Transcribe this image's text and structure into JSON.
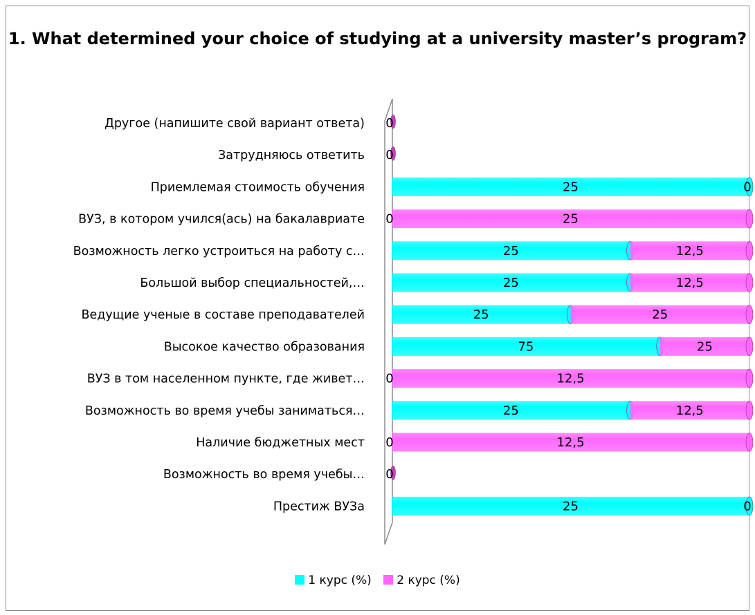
{
  "chart_data": {
    "type": "bar",
    "orientation": "horizontal",
    "stacked": true,
    "title": "1. What determined your choice of studying at a university master’s program?",
    "categories": [
      "Другое (напишите свой вариант ответа)",
      "Затрудняюсь ответить",
      "Приемлемая стоимость обучения",
      "ВУЗ, в котором учился(ась) на бакалавриате",
      "Возможность легко устроиться на работу с…",
      "Большой выбор специальностей,…",
      "Ведущие ученые в составе преподавателей",
      "Высокое качество образования",
      "ВУЗ в том населенном пункте, где живет…",
      "Возможность во время учебы заниматься…",
      "Наличие бюджетных мест",
      "Возможность во время учебы…",
      "Престиж ВУЗа"
    ],
    "series": [
      {
        "name": "1 курс (%)",
        "color": "#00ffff",
        "values": [
          0,
          0,
          25,
          0,
          25,
          25,
          25,
          75,
          0,
          25,
          0,
          0,
          25
        ]
      },
      {
        "name": "2 курс (%)",
        "color": "#ff66ff",
        "values": [
          0,
          0,
          0,
          25,
          12.5,
          12.5,
          25,
          25,
          12.5,
          12.5,
          12.5,
          0,
          0
        ]
      }
    ],
    "data_labels": {
      "s1": [
        "0",
        "0",
        "25",
        "0",
        "25",
        "25",
        "25",
        "75",
        "0",
        "25",
        "0",
        "0",
        "25"
      ],
      "s2": [
        "0",
        "0",
        "0",
        "25",
        "12,5",
        "12,5",
        "25",
        "25",
        "12,5",
        "12,5",
        "12,5",
        "0",
        "0"
      ]
    },
    "legend_position": "bottom",
    "grid": false
  }
}
